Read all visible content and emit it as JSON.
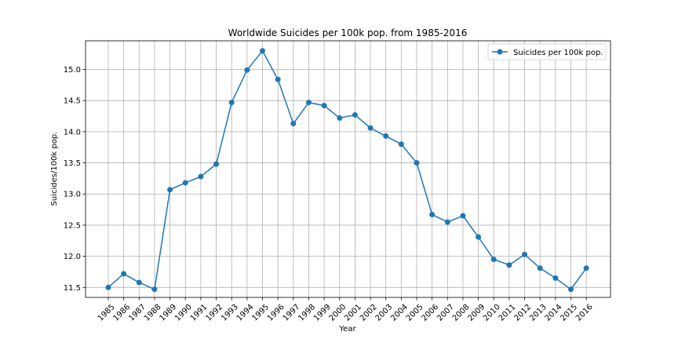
{
  "chart_data": {
    "type": "line",
    "title": "Worldwide Suicides per 100k pop. from 1985-2016",
    "xlabel": "Year",
    "ylabel": "Suicides/100k pop.",
    "categories": [
      "1985",
      "1986",
      "1987",
      "1988",
      "1989",
      "1990",
      "1991",
      "1992",
      "1993",
      "1994",
      "1995",
      "1996",
      "1997",
      "1998",
      "1999",
      "2000",
      "2001",
      "2002",
      "2003",
      "2004",
      "2005",
      "2006",
      "2007",
      "2008",
      "2009",
      "2010",
      "2011",
      "2012",
      "2013",
      "2014",
      "2015",
      "2016"
    ],
    "series": [
      {
        "name": "Suicides per 100k pop.",
        "color": "#1f77b4",
        "values": [
          11.5,
          11.72,
          11.58,
          11.47,
          13.07,
          13.18,
          13.28,
          13.48,
          14.47,
          14.99,
          15.3,
          14.84,
          14.13,
          14.47,
          14.42,
          14.22,
          14.27,
          14.06,
          13.93,
          13.8,
          13.5,
          12.67,
          12.55,
          12.65,
          12.31,
          11.95,
          11.86,
          12.03,
          11.81,
          11.65,
          11.47,
          11.81
        ]
      }
    ],
    "ylim": [
      11.34,
      15.46
    ],
    "yticks": [
      "11.5",
      "12.0",
      "12.5",
      "13.0",
      "13.5",
      "14.0",
      "14.5",
      "15.0"
    ],
    "grid": true,
    "legend": "upper right"
  }
}
